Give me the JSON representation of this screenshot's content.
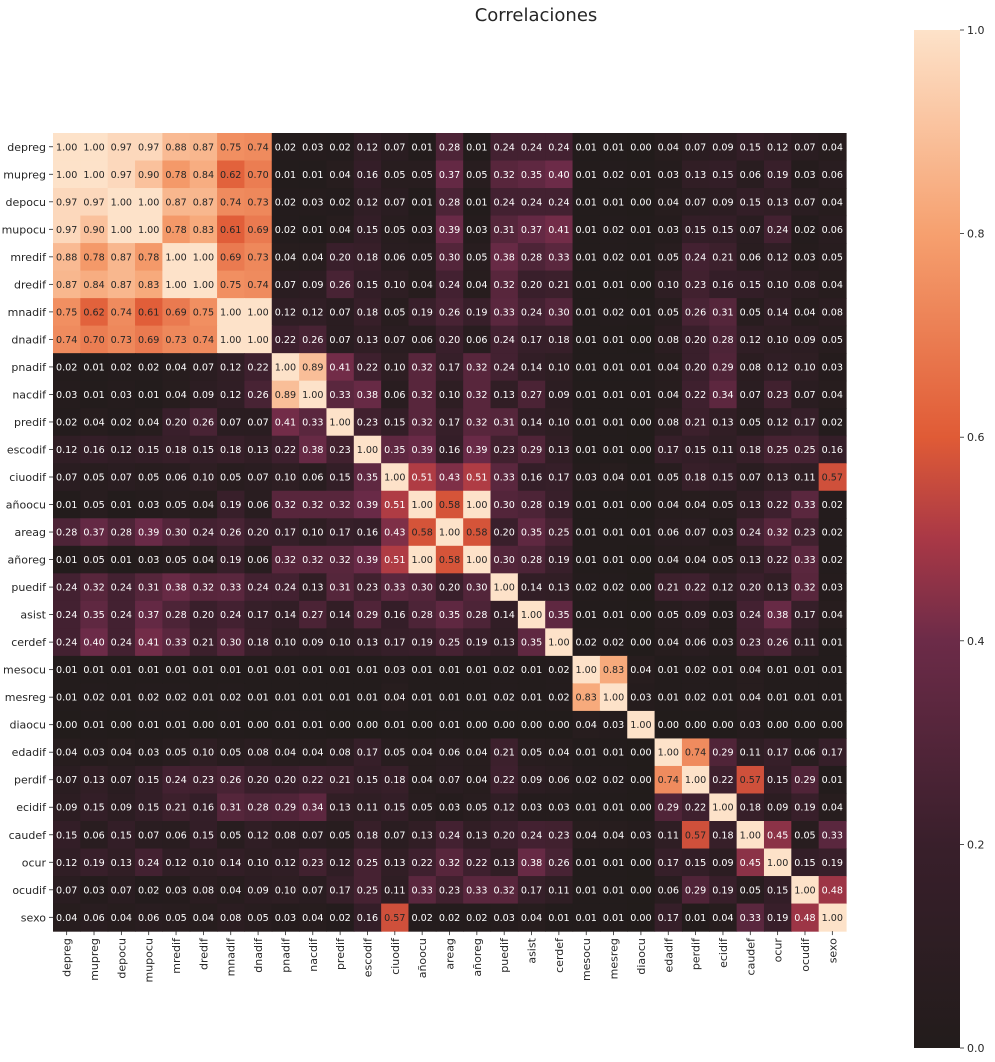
{
  "chart_data": {
    "type": "heatmap",
    "title": "Correlaciones",
    "variables": [
      "depreg",
      "mupreg",
      "depocu",
      "mupocu",
      "mredif",
      "dredif",
      "mnadif",
      "dnadif",
      "pnadif",
      "nacdif",
      "predif",
      "escodif",
      "ciuodif",
      "añoocu",
      "areag",
      "añoreg",
      "puedif",
      "asist",
      "cerdef",
      "mesocu",
      "mesreg",
      "diaocu",
      "edadif",
      "perdif",
      "ecidif",
      "caudef",
      "ocur",
      "ocudif",
      "sexo"
    ],
    "colorbar": {
      "min": 0.0,
      "max": 1.0,
      "ticks": [
        0.0,
        0.2,
        0.4,
        0.6,
        0.8,
        1.0
      ],
      "tick_labels": [
        "0.0",
        "0.2",
        "0.4",
        "0.6",
        "0.8",
        "1.0"
      ]
    },
    "values": [
      [
        1.0,
        1.0,
        0.97,
        0.97,
        0.88,
        0.87,
        0.75,
        0.74,
        0.02,
        0.03,
        0.02,
        0.12,
        0.07,
        0.01,
        0.28,
        0.01,
        0.24,
        0.24,
        0.24,
        0.01,
        0.01,
        0.0,
        0.04,
        0.07,
        0.09,
        0.15,
        0.12,
        0.07,
        0.04
      ],
      [
        1.0,
        1.0,
        0.97,
        0.9,
        0.78,
        0.84,
        0.62,
        0.7,
        0.01,
        0.01,
        0.04,
        0.16,
        0.05,
        0.05,
        0.37,
        0.05,
        0.32,
        0.35,
        0.4,
        0.01,
        0.02,
        0.01,
        0.03,
        0.13,
        0.15,
        0.06,
        0.19,
        0.03,
        0.06
      ],
      [
        0.97,
        0.97,
        1.0,
        1.0,
        0.87,
        0.87,
        0.74,
        0.73,
        0.02,
        0.03,
        0.02,
        0.12,
        0.07,
        0.01,
        0.28,
        0.01,
        0.24,
        0.24,
        0.24,
        0.01,
        0.01,
        0.0,
        0.04,
        0.07,
        0.09,
        0.15,
        0.13,
        0.07,
        0.04
      ],
      [
        0.97,
        0.9,
        1.0,
        1.0,
        0.78,
        0.83,
        0.61,
        0.69,
        0.02,
        0.01,
        0.04,
        0.15,
        0.05,
        0.03,
        0.39,
        0.03,
        0.31,
        0.37,
        0.41,
        0.01,
        0.02,
        0.01,
        0.03,
        0.15,
        0.15,
        0.07,
        0.24,
        0.02,
        0.06
      ],
      [
        0.88,
        0.78,
        0.87,
        0.78,
        1.0,
        1.0,
        0.69,
        0.73,
        0.04,
        0.04,
        0.2,
        0.18,
        0.06,
        0.05,
        0.3,
        0.05,
        0.38,
        0.28,
        0.33,
        0.01,
        0.02,
        0.01,
        0.05,
        0.24,
        0.21,
        0.06,
        0.12,
        0.03,
        0.05
      ],
      [
        0.87,
        0.84,
        0.87,
        0.83,
        1.0,
        1.0,
        0.75,
        0.74,
        0.07,
        0.09,
        0.26,
        0.15,
        0.1,
        0.04,
        0.24,
        0.04,
        0.32,
        0.2,
        0.21,
        0.01,
        0.01,
        0.0,
        0.1,
        0.23,
        0.16,
        0.15,
        0.1,
        0.08,
        0.04
      ],
      [
        0.75,
        0.62,
        0.74,
        0.61,
        0.69,
        0.75,
        1.0,
        1.0,
        0.12,
        0.12,
        0.07,
        0.18,
        0.05,
        0.19,
        0.26,
        0.19,
        0.33,
        0.24,
        0.3,
        0.01,
        0.02,
        0.01,
        0.05,
        0.26,
        0.31,
        0.05,
        0.14,
        0.04,
        0.08
      ],
      [
        0.74,
        0.7,
        0.73,
        0.69,
        0.73,
        0.74,
        1.0,
        1.0,
        0.22,
        0.26,
        0.07,
        0.13,
        0.07,
        0.06,
        0.2,
        0.06,
        0.24,
        0.17,
        0.18,
        0.01,
        0.01,
        0.0,
        0.08,
        0.2,
        0.28,
        0.12,
        0.1,
        0.09,
        0.05
      ],
      [
        0.02,
        0.01,
        0.02,
        0.02,
        0.04,
        0.07,
        0.12,
        0.22,
        1.0,
        0.89,
        0.41,
        0.22,
        0.1,
        0.32,
        0.17,
        0.32,
        0.24,
        0.14,
        0.1,
        0.01,
        0.01,
        0.01,
        0.04,
        0.2,
        0.29,
        0.08,
        0.12,
        0.1,
        0.03
      ],
      [
        0.03,
        0.01,
        0.03,
        0.01,
        0.04,
        0.09,
        0.12,
        0.26,
        0.89,
        1.0,
        0.33,
        0.38,
        0.06,
        0.32,
        0.1,
        0.32,
        0.13,
        0.27,
        0.09,
        0.01,
        0.01,
        0.01,
        0.04,
        0.22,
        0.34,
        0.07,
        0.23,
        0.07,
        0.04
      ],
      [
        0.02,
        0.04,
        0.02,
        0.04,
        0.2,
        0.26,
        0.07,
        0.07,
        0.41,
        0.33,
        1.0,
        0.23,
        0.15,
        0.32,
        0.17,
        0.32,
        0.31,
        0.14,
        0.1,
        0.01,
        0.01,
        0.0,
        0.08,
        0.21,
        0.13,
        0.05,
        0.12,
        0.17,
        0.02
      ],
      [
        0.12,
        0.16,
        0.12,
        0.15,
        0.18,
        0.15,
        0.18,
        0.13,
        0.22,
        0.38,
        0.23,
        1.0,
        0.35,
        0.39,
        0.16,
        0.39,
        0.23,
        0.29,
        0.13,
        0.01,
        0.01,
        0.0,
        0.17,
        0.15,
        0.11,
        0.18,
        0.25,
        0.25,
        0.16
      ],
      [
        0.07,
        0.05,
        0.07,
        0.05,
        0.06,
        0.1,
        0.05,
        0.07,
        0.1,
        0.06,
        0.15,
        0.35,
        1.0,
        0.51,
        0.43,
        0.51,
        0.33,
        0.16,
        0.17,
        0.03,
        0.04,
        0.01,
        0.05,
        0.18,
        0.15,
        0.07,
        0.13,
        0.11,
        0.57
      ],
      [
        0.01,
        0.05,
        0.01,
        0.03,
        0.05,
        0.04,
        0.19,
        0.06,
        0.32,
        0.32,
        0.32,
        0.39,
        0.51,
        1.0,
        0.58,
        1.0,
        0.3,
        0.28,
        0.19,
        0.01,
        0.01,
        0.0,
        0.04,
        0.04,
        0.05,
        0.13,
        0.22,
        0.33,
        0.02
      ],
      [
        0.28,
        0.37,
        0.28,
        0.39,
        0.3,
        0.24,
        0.26,
        0.2,
        0.17,
        0.1,
        0.17,
        0.16,
        0.43,
        0.58,
        1.0,
        0.58,
        0.2,
        0.35,
        0.25,
        0.01,
        0.01,
        0.01,
        0.06,
        0.07,
        0.03,
        0.24,
        0.32,
        0.23,
        0.02
      ],
      [
        0.01,
        0.05,
        0.01,
        0.03,
        0.05,
        0.04,
        0.19,
        0.06,
        0.32,
        0.32,
        0.32,
        0.39,
        0.51,
        1.0,
        0.58,
        1.0,
        0.3,
        0.28,
        0.19,
        0.01,
        0.01,
        0.0,
        0.04,
        0.04,
        0.05,
        0.13,
        0.22,
        0.33,
        0.02
      ],
      [
        0.24,
        0.32,
        0.24,
        0.31,
        0.38,
        0.32,
        0.33,
        0.24,
        0.24,
        0.13,
        0.31,
        0.23,
        0.33,
        0.3,
        0.2,
        0.3,
        1.0,
        0.14,
        0.13,
        0.02,
        0.02,
        0.0,
        0.21,
        0.22,
        0.12,
        0.2,
        0.13,
        0.32,
        0.03
      ],
      [
        0.24,
        0.35,
        0.24,
        0.37,
        0.28,
        0.2,
        0.24,
        0.17,
        0.14,
        0.27,
        0.14,
        0.29,
        0.16,
        0.28,
        0.35,
        0.28,
        0.14,
        1.0,
        0.35,
        0.01,
        0.01,
        0.0,
        0.05,
        0.09,
        0.03,
        0.24,
        0.38,
        0.17,
        0.04
      ],
      [
        0.24,
        0.4,
        0.24,
        0.41,
        0.33,
        0.21,
        0.3,
        0.18,
        0.1,
        0.09,
        0.1,
        0.13,
        0.17,
        0.19,
        0.25,
        0.19,
        0.13,
        0.35,
        1.0,
        0.02,
        0.02,
        0.0,
        0.04,
        0.06,
        0.03,
        0.23,
        0.26,
        0.11,
        0.01
      ],
      [
        0.01,
        0.01,
        0.01,
        0.01,
        0.01,
        0.01,
        0.01,
        0.01,
        0.01,
        0.01,
        0.01,
        0.01,
        0.03,
        0.01,
        0.01,
        0.01,
        0.02,
        0.01,
        0.02,
        1.0,
        0.83,
        0.04,
        0.01,
        0.02,
        0.01,
        0.04,
        0.01,
        0.01,
        0.01
      ],
      [
        0.01,
        0.02,
        0.01,
        0.02,
        0.02,
        0.01,
        0.02,
        0.01,
        0.01,
        0.01,
        0.01,
        0.01,
        0.04,
        0.01,
        0.01,
        0.01,
        0.02,
        0.01,
        0.02,
        0.83,
        1.0,
        0.03,
        0.01,
        0.02,
        0.01,
        0.04,
        0.01,
        0.01,
        0.01
      ],
      [
        0.0,
        0.01,
        0.0,
        0.01,
        0.01,
        0.0,
        0.01,
        0.0,
        0.01,
        0.01,
        0.0,
        0.0,
        0.01,
        0.0,
        0.01,
        0.0,
        0.0,
        0.0,
        0.0,
        0.04,
        0.03,
        1.0,
        0.0,
        0.0,
        0.0,
        0.03,
        0.0,
        0.0,
        0.0
      ],
      [
        0.04,
        0.03,
        0.04,
        0.03,
        0.05,
        0.1,
        0.05,
        0.08,
        0.04,
        0.04,
        0.08,
        0.17,
        0.05,
        0.04,
        0.06,
        0.04,
        0.21,
        0.05,
        0.04,
        0.01,
        0.01,
        0.0,
        1.0,
        0.74,
        0.29,
        0.11,
        0.17,
        0.06,
        0.17
      ],
      [
        0.07,
        0.13,
        0.07,
        0.15,
        0.24,
        0.23,
        0.26,
        0.2,
        0.2,
        0.22,
        0.21,
        0.15,
        0.18,
        0.04,
        0.07,
        0.04,
        0.22,
        0.09,
        0.06,
        0.02,
        0.02,
        0.0,
        0.74,
        1.0,
        0.22,
        0.57,
        0.15,
        0.29,
        0.01
      ],
      [
        0.09,
        0.15,
        0.09,
        0.15,
        0.21,
        0.16,
        0.31,
        0.28,
        0.29,
        0.34,
        0.13,
        0.11,
        0.15,
        0.05,
        0.03,
        0.05,
        0.12,
        0.03,
        0.03,
        0.01,
        0.01,
        0.0,
        0.29,
        0.22,
        1.0,
        0.18,
        0.09,
        0.19,
        0.04
      ],
      [
        0.15,
        0.06,
        0.15,
        0.07,
        0.06,
        0.15,
        0.05,
        0.12,
        0.08,
        0.07,
        0.05,
        0.18,
        0.07,
        0.13,
        0.24,
        0.13,
        0.2,
        0.24,
        0.23,
        0.04,
        0.04,
        0.03,
        0.11,
        0.57,
        0.18,
        1.0,
        0.45,
        0.05,
        0.33
      ],
      [
        0.12,
        0.19,
        0.13,
        0.24,
        0.12,
        0.1,
        0.14,
        0.1,
        0.12,
        0.23,
        0.12,
        0.25,
        0.13,
        0.22,
        0.32,
        0.22,
        0.13,
        0.38,
        0.26,
        0.01,
        0.01,
        0.0,
        0.17,
        0.15,
        0.09,
        0.45,
        1.0,
        0.15,
        0.19
      ],
      [
        0.07,
        0.03,
        0.07,
        0.02,
        0.03,
        0.08,
        0.04,
        0.09,
        0.1,
        0.07,
        0.17,
        0.25,
        0.11,
        0.33,
        0.23,
        0.33,
        0.32,
        0.17,
        0.11,
        0.01,
        0.01,
        0.0,
        0.06,
        0.29,
        0.19,
        0.05,
        0.15,
        1.0,
        0.48
      ],
      [
        0.04,
        0.06,
        0.04,
        0.06,
        0.05,
        0.04,
        0.08,
        0.05,
        0.03,
        0.04,
        0.02,
        0.16,
        0.57,
        0.02,
        0.02,
        0.02,
        0.03,
        0.04,
        0.01,
        0.01,
        0.01,
        0.0,
        0.17,
        0.01,
        0.04,
        0.33,
        0.19,
        0.48,
        1.0
      ]
    ]
  }
}
